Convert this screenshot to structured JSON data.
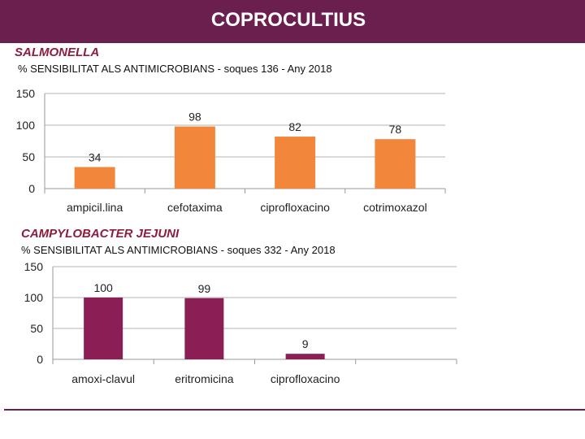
{
  "page": {
    "title": "COPROCULTIUS",
    "colors": {
      "header": "#6b1f4e",
      "organism": "#8e1c3c"
    }
  },
  "salmonella": {
    "organism": "SALMONELLA",
    "subtitle": "% SENSIBILITAT ALS ANTIMICROBIANS - soques 136 - Any 2018",
    "color": "#f2863a"
  },
  "campylobacter": {
    "organism": "CAMPYLOBACTER JEJUNI",
    "subtitle": "% SENSIBILITAT ALS ANTIMICROBIANS - soques 332 - Any 2018",
    "color": "#8b1f55"
  },
  "chart_data": [
    {
      "type": "bar",
      "title": "SALMONELLA",
      "categories": [
        "ampicil.lina",
        "cefotaxima",
        "ciprofloxacino",
        "cotrimoxazol"
      ],
      "values": [
        34,
        98,
        82,
        78
      ],
      "ylim": [
        0,
        150
      ],
      "yticks": [
        0,
        50,
        100,
        150
      ],
      "grid": true,
      "xlabel": "",
      "ylabel": ""
    },
    {
      "type": "bar",
      "title": "CAMPYLOBACTER JEJUNI",
      "categories": [
        "amoxi-clavul",
        "eritromicina",
        "ciprofloxacino",
        ""
      ],
      "values": [
        100,
        99,
        9,
        null
      ],
      "ylim": [
        0,
        150
      ],
      "yticks": [
        0,
        50,
        100,
        150
      ],
      "grid": true,
      "xlabel": "",
      "ylabel": ""
    }
  ]
}
